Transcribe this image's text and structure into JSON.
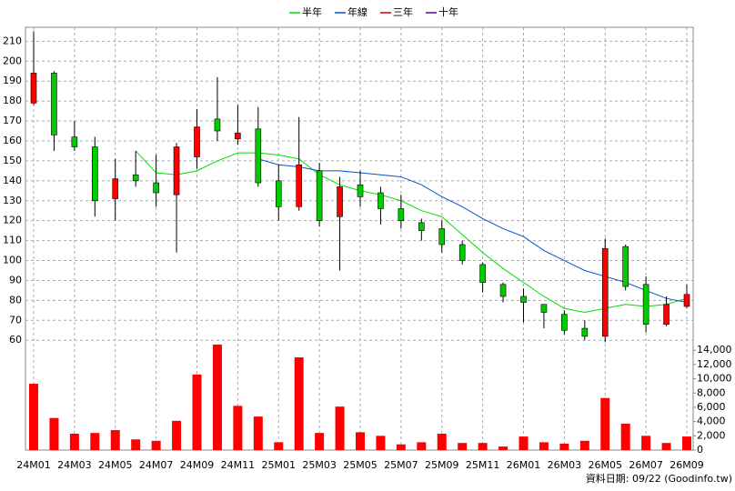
{
  "chart_data": {
    "type": "candlestick",
    "categories": [
      "24M01",
      null,
      "24M03",
      null,
      "24M05",
      null,
      "24M07",
      null,
      "24M09",
      null,
      "24M11",
      null,
      "25M01",
      null,
      "25M03",
      null,
      "25M05",
      null,
      "25M07",
      null,
      "25M09",
      null,
      "25M11",
      null,
      "26M01",
      null,
      "26M03",
      null,
      "26M05",
      null,
      "26M07",
      null,
      "26M09"
    ],
    "open": [
      179,
      194,
      162,
      157,
      131,
      143,
      139,
      133,
      152,
      171,
      161,
      166,
      140,
      127,
      145,
      122,
      138,
      134,
      126,
      119,
      116,
      108,
      98,
      88,
      82,
      78,
      73,
      66,
      62,
      107,
      88,
      68,
      77
    ],
    "high": [
      215,
      195,
      170,
      162,
      151,
      155,
      153,
      159,
      176,
      192,
      178,
      177,
      148,
      172,
      149,
      142,
      145,
      137,
      133,
      121,
      120,
      110,
      99,
      89,
      86,
      78,
      75,
      70,
      111,
      108,
      92,
      82,
      88
    ],
    "low": [
      178,
      155,
      155,
      122,
      120,
      137,
      127,
      104,
      146,
      160,
      158,
      137,
      120,
      125,
      117,
      95,
      127,
      118,
      116,
      110,
      104,
      98,
      84,
      79,
      69,
      66,
      63,
      60,
      59,
      85,
      64,
      67,
      76
    ],
    "close": [
      194,
      163,
      157,
      130,
      141,
      140,
      134,
      157,
      167,
      165,
      164,
      139,
      127,
      148,
      120,
      137,
      132,
      126,
      120,
      115,
      108,
      100,
      89,
      82,
      79,
      74,
      65,
      62,
      106,
      87,
      68,
      78,
      83
    ],
    "up_color": "#ff0000",
    "down_color": "#00cc00",
    "ylim": [
      56,
      217
    ],
    "yticks": [
      60,
      70,
      80,
      90,
      100,
      110,
      120,
      130,
      140,
      150,
      160,
      170,
      180,
      190,
      200,
      210
    ],
    "grid": true,
    "series": [
      {
        "name": "半年",
        "color": "#00dd00",
        "values": [
          null,
          null,
          null,
          null,
          null,
          155,
          144,
          143,
          145,
          150,
          154,
          154,
          153,
          151,
          143,
          138,
          135,
          133,
          130,
          125,
          122,
          113,
          104,
          96,
          89,
          82,
          76,
          74,
          76,
          78,
          77,
          78,
          81
        ]
      },
      {
        "name": "年線",
        "color": "#0055cc",
        "values": [
          null,
          null,
          null,
          null,
          null,
          null,
          null,
          null,
          null,
          null,
          null,
          151,
          148,
          147,
          145,
          145,
          144,
          143,
          142,
          138,
          132,
          127,
          121,
          116,
          112,
          105,
          100,
          95,
          92,
          89,
          85,
          81,
          79
        ]
      },
      {
        "name": "三年",
        "color": "#cc0000",
        "values": [
          null,
          null,
          null,
          null,
          null,
          null,
          null,
          null,
          null,
          null,
          null,
          null,
          null,
          null,
          null,
          null,
          null,
          null,
          null,
          null,
          null,
          null,
          null,
          null,
          null,
          null,
          null,
          null,
          null,
          null,
          null,
          null,
          null
        ]
      },
      {
        "name": "十年",
        "color": "#660099",
        "values": [
          null,
          null,
          null,
          null,
          null,
          null,
          null,
          null,
          null,
          null,
          null,
          null,
          null,
          null,
          null,
          null,
          null,
          null,
          null,
          null,
          null,
          null,
          null,
          null,
          null,
          null,
          null,
          null,
          null,
          null,
          null,
          null,
          null
        ]
      }
    ],
    "volume": {
      "color": "#ff0000",
      "ylim": [
        0,
        15300
      ],
      "yticks": [
        0,
        {
          "value": 2000,
          "label": "2,000"
        },
        {
          "value": 4000,
          "label": "4,000"
        },
        {
          "value": 6000,
          "label": "6,000"
        },
        {
          "value": 8000,
          "label": "8,000"
        },
        {
          "value": 10000,
          "label": "10,000"
        },
        {
          "value": 12000,
          "label": "12,000"
        },
        {
          "value": 14000,
          "label": "14,000"
        }
      ],
      "values": [
        9300,
        4500,
        2300,
        2400,
        2800,
        1500,
        1300,
        4100,
        10600,
        14800,
        6200,
        4700,
        1100,
        13000,
        2400,
        6100,
        2500,
        2000,
        800,
        1100,
        2300,
        1000,
        1000,
        500,
        1900,
        1100,
        900,
        1300,
        7300,
        3700,
        2000,
        1000,
        1900
      ]
    },
    "note": "資料日期: 09/22 (Goodinfo.tw)"
  }
}
